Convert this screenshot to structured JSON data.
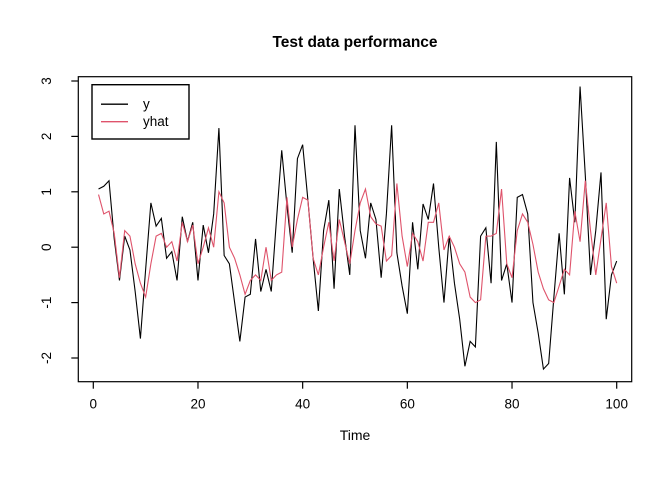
{
  "page": {
    "background": "#ffffff"
  },
  "chart_data": {
    "type": "line",
    "title": "Test data performance",
    "xlabel": "Time",
    "ylabel": "",
    "x_start": 1,
    "xlim": [
      0,
      100
    ],
    "ylim": [
      -2.43,
      3.08
    ],
    "x_ticks": [
      0,
      20,
      40,
      60,
      80,
      100
    ],
    "y_ticks": [
      -2,
      -1,
      0,
      1,
      2,
      3
    ],
    "grid": false,
    "box": true,
    "axis_color": "#000000",
    "legend": {
      "position": "topleft",
      "entries": [
        "y",
        "yhat"
      ]
    },
    "series": [
      {
        "name": "y",
        "color": "#000000",
        "values": [
          1.05,
          1.1,
          1.2,
          0.15,
          -0.6,
          0.2,
          -0.05,
          -0.8,
          -1.65,
          -0.4,
          0.8,
          0.38,
          0.52,
          -0.2,
          -0.08,
          -0.6,
          0.55,
          0.1,
          0.45,
          -0.6,
          0.4,
          -0.1,
          0.6,
          2.15,
          -0.15,
          -0.3,
          -1.0,
          -1.7,
          -0.9,
          -0.85,
          0.15,
          -0.8,
          -0.4,
          -0.8,
          0.5,
          1.75,
          0.75,
          -0.1,
          1.6,
          1.85,
          0.85,
          -0.2,
          -1.15,
          0.3,
          0.85,
          -0.75,
          1.05,
          0.2,
          -0.5,
          2.2,
          0.3,
          -0.2,
          0.8,
          0.5,
          -0.55,
          0.6,
          2.2,
          -0.1,
          -0.7,
          -1.2,
          0.45,
          -0.4,
          0.78,
          0.5,
          1.15,
          0.0,
          -1.0,
          0.2,
          -0.65,
          -1.3,
          -2.15,
          -1.7,
          -1.8,
          0.2,
          0.35,
          -0.65,
          1.9,
          -0.6,
          -0.3,
          -1.0,
          0.9,
          0.95,
          0.6,
          -1.0,
          -1.55,
          -2.2,
          -2.1,
          -0.9,
          0.25,
          -0.85,
          1.25,
          0.45,
          2.9,
          1.3,
          -0.5,
          0.3,
          1.35,
          -1.3,
          -0.5,
          -0.25
        ]
      },
      {
        "name": "yhat",
        "color": "#DF536B",
        "values": [
          0.95,
          0.6,
          0.65,
          0.25,
          -0.55,
          0.3,
          0.2,
          -0.3,
          -0.65,
          -0.9,
          -0.3,
          0.2,
          0.25,
          0.0,
          0.1,
          -0.25,
          0.45,
          0.1,
          0.4,
          -0.3,
          0.0,
          0.35,
          0.0,
          1.0,
          0.8,
          0.0,
          -0.2,
          -0.5,
          -0.85,
          -0.6,
          -0.5,
          -0.6,
          0.0,
          -0.6,
          -0.5,
          -0.45,
          0.9,
          0.0,
          0.5,
          0.9,
          0.85,
          -0.2,
          -0.5,
          0.0,
          0.45,
          -0.25,
          0.5,
          0.1,
          -0.3,
          0.3,
          0.8,
          1.05,
          0.55,
          0.42,
          0.38,
          -0.25,
          -0.15,
          1.15,
          0.2,
          -0.35,
          0.25,
          0.1,
          -0.25,
          0.45,
          0.45,
          0.8,
          -0.05,
          0.2,
          0.0,
          -0.3,
          -0.45,
          -0.9,
          -1.0,
          -0.95,
          0.2,
          0.2,
          0.25,
          1.05,
          -0.3,
          -0.55,
          0.3,
          0.6,
          0.45,
          0.05,
          -0.45,
          -0.75,
          -0.95,
          -1.0,
          -0.7,
          -0.4,
          -0.5,
          0.65,
          0.1,
          1.2,
          0.3,
          -0.5,
          0.15,
          0.8,
          -0.35,
          -0.65
        ]
      }
    ]
  }
}
